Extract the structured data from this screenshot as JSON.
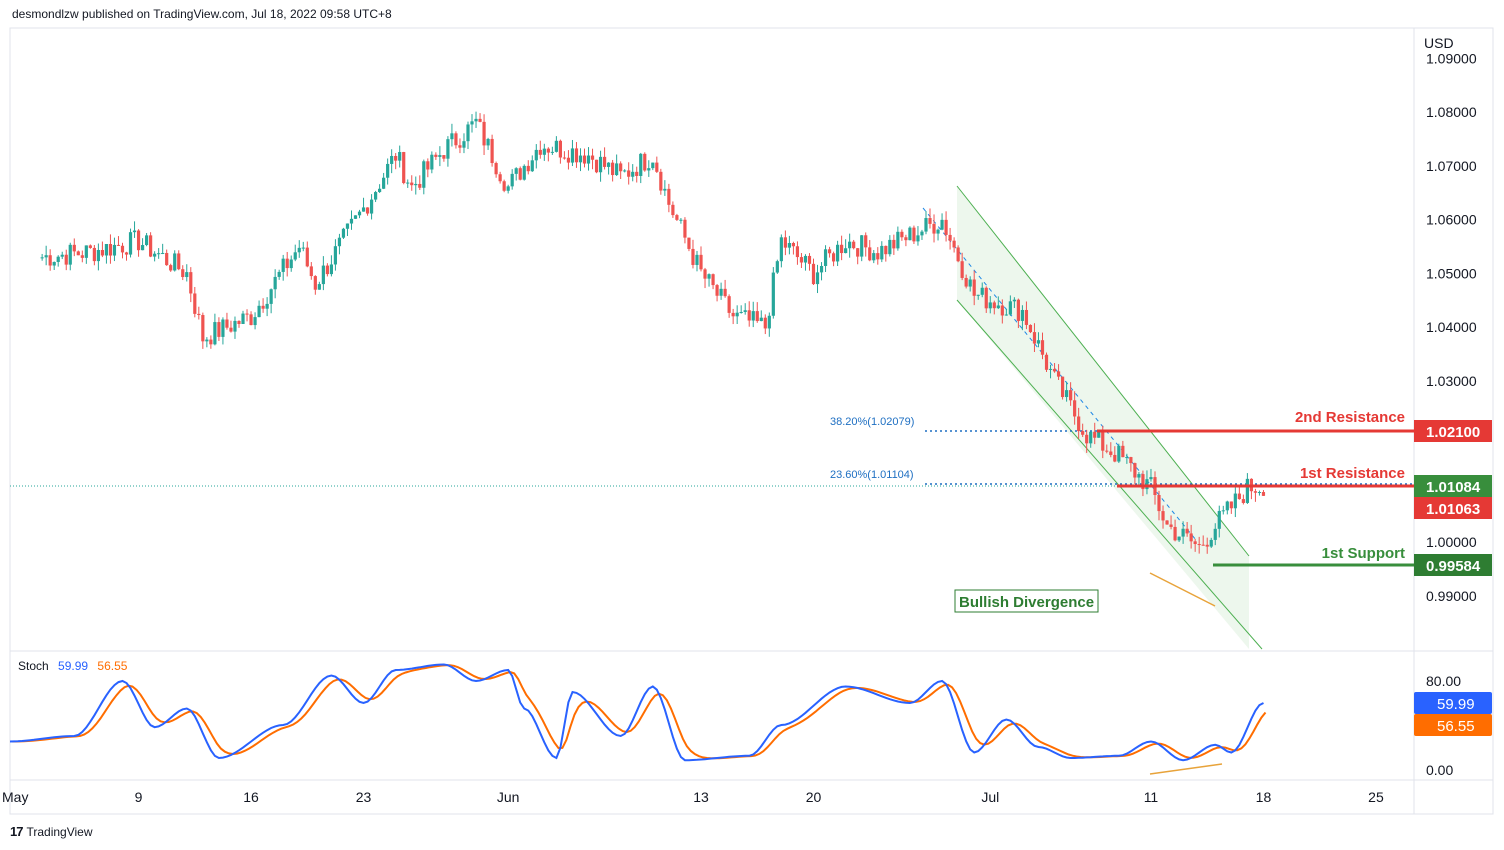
{
  "header": {
    "publisher": "desmondlzw published on TradingView.com, Jul 18, 2022 09:58 UTC+8"
  },
  "footer": {
    "logo_text": "TradingView",
    "logo_mark": "17"
  },
  "price_axis": {
    "currency": "USD",
    "ticks": [
      "1.09000",
      "1.08000",
      "1.07000",
      "1.06000",
      "1.05000",
      "1.04000",
      "1.03000",
      "1.00000",
      "0.99000"
    ]
  },
  "stoch_axis": {
    "ticks": [
      "80.00",
      "0.00"
    ]
  },
  "time_axis": {
    "labels": [
      "May",
      "9",
      "16",
      "23",
      "Jun",
      "13",
      "20",
      "Jul",
      "11",
      "18",
      "25"
    ]
  },
  "annotations": {
    "resistance2_label": "2nd Resistance",
    "resistance2_value": "1.02100",
    "resistance1_label": "1st Resistance",
    "resistance1_value": "1.01084",
    "current_price": "1.01063",
    "support1_label": "1st Support",
    "support1_value": "0.99584",
    "fib_382": "38.20%(1.02079)",
    "fib_236": "23.60%(1.01104)",
    "divergence_label": "Bullish Divergence"
  },
  "stoch": {
    "name": "Stoch",
    "k_value": "59.99",
    "d_value": "56.55",
    "k_badge": "59.99",
    "d_badge": "56.55"
  },
  "colors": {
    "up": "#26a69a",
    "down": "#ef5350",
    "resistance": "#e53935",
    "support": "#388e3c",
    "channel": "#4caf50",
    "channel_fill": "#e8f5e9",
    "fib": "#1e6fc2",
    "stoch_k": "#2962ff",
    "stoch_d": "#ff6d00",
    "divergence": "#e8a33a"
  },
  "chart_data": {
    "type": "candlestick",
    "symbol_currency": "USD",
    "x_range": [
      "2022-05-01",
      "2022-07-27"
    ],
    "y_range": [
      0.98,
      1.092
    ],
    "anchors": [
      {
        "date": "May 3",
        "price": 1.053
      },
      {
        "date": "May 6",
        "price": 1.054
      },
      {
        "date": "May 9",
        "price": 1.056
      },
      {
        "date": "May 12",
        "price": 1.05
      },
      {
        "date": "May 13",
        "price": 1.038
      },
      {
        "date": "May 16",
        "price": 1.042
      },
      {
        "date": "May 19",
        "price": 1.055
      },
      {
        "date": "May 20",
        "price": 1.048
      },
      {
        "date": "May 23",
        "price": 1.062
      },
      {
        "date": "May 25",
        "price": 1.072
      },
      {
        "date": "May 26",
        "price": 1.066
      },
      {
        "date": "May 28",
        "price": 1.073
      },
      {
        "date": "May 30",
        "price": 1.078
      },
      {
        "date": "Jun 1",
        "price": 1.066
      },
      {
        "date": "Jun 3",
        "price": 1.074
      },
      {
        "date": "Jun 6",
        "price": 1.072
      },
      {
        "date": "Jun 8",
        "price": 1.068
      },
      {
        "date": "Jun 10",
        "price": 1.072
      },
      {
        "date": "Jun 11",
        "price": 1.063
      },
      {
        "date": "Jun 13",
        "price": 1.05
      },
      {
        "date": "Jun 15",
        "price": 1.042
      },
      {
        "date": "Jun 17",
        "price": 1.04
      },
      {
        "date": "Jun 18",
        "price": 1.056
      },
      {
        "date": "Jun 20",
        "price": 1.05
      },
      {
        "date": "Jun 22",
        "price": 1.056
      },
      {
        "date": "Jun 24",
        "price": 1.054
      },
      {
        "date": "Jun 26",
        "price": 1.057
      },
      {
        "date": "Jun 28",
        "price": 1.06
      },
      {
        "date": "Jun 30",
        "price": 1.046
      },
      {
        "date": "Jul 3",
        "price": 1.043
      },
      {
        "date": "Jul 5",
        "price": 1.03
      },
      {
        "date": "Jul 7",
        "price": 1.02
      },
      {
        "date": "Jul 9",
        "price": 1.016
      },
      {
        "date": "Jul 11",
        "price": 1.01
      },
      {
        "date": "Jul 12",
        "price": 1.003
      },
      {
        "date": "Jul 14",
        "price": 0.999
      },
      {
        "date": "Jul 15",
        "price": 1.003
      },
      {
        "date": "Jul 17",
        "price": 1.01
      },
      {
        "date": "Jul 18",
        "price": 1.0106
      }
    ],
    "levels": {
      "resistance_2": 1.021,
      "resistance_1": 1.01084,
      "last_price": 1.01063,
      "support_1": 0.99584,
      "fib_38_2": 1.02079,
      "fib_23_6": 1.01104
    },
    "stochastic": {
      "k_last": 59.99,
      "d_last": 56.55,
      "y_range": [
        0,
        100
      ],
      "anchors": [
        {
          "date": "May 1",
          "value": 25
        },
        {
          "date": "May 5",
          "value": 30
        },
        {
          "date": "May 8",
          "value": 80
        },
        {
          "date": "May 10",
          "value": 38
        },
        {
          "date": "May 12",
          "value": 55
        },
        {
          "date": "May 14",
          "value": 10
        },
        {
          "date": "May 18",
          "value": 40
        },
        {
          "date": "May 21",
          "value": 85
        },
        {
          "date": "May 23",
          "value": 60
        },
        {
          "date": "May 25",
          "value": 90
        },
        {
          "date": "May 28",
          "value": 95
        },
        {
          "date": "May 30",
          "value": 80
        },
        {
          "date": "Jun 1",
          "value": 90
        },
        {
          "date": "Jun 2",
          "value": 55
        },
        {
          "date": "Jun 4",
          "value": 10
        },
        {
          "date": "Jun 5",
          "value": 70
        },
        {
          "date": "Jun 8",
          "value": 30
        },
        {
          "date": "Jun 10",
          "value": 75
        },
        {
          "date": "Jun 12",
          "value": 8
        },
        {
          "date": "Jun 16",
          "value": 12
        },
        {
          "date": "Jun 18",
          "value": 40
        },
        {
          "date": "Jun 22",
          "value": 75
        },
        {
          "date": "Jun 26",
          "value": 60
        },
        {
          "date": "Jun 28",
          "value": 80
        },
        {
          "date": "Jun 30",
          "value": 15
        },
        {
          "date": "Jul 2",
          "value": 45
        },
        {
          "date": "Jul 4",
          "value": 20
        },
        {
          "date": "Jul 6",
          "value": 10
        },
        {
          "date": "Jul 9",
          "value": 12
        },
        {
          "date": "Jul 11",
          "value": 25
        },
        {
          "date": "Jul 13",
          "value": 8
        },
        {
          "date": "Jul 15",
          "value": 22
        },
        {
          "date": "Jul 16",
          "value": 15
        },
        {
          "date": "Jul 18",
          "value": 60
        }
      ]
    }
  }
}
